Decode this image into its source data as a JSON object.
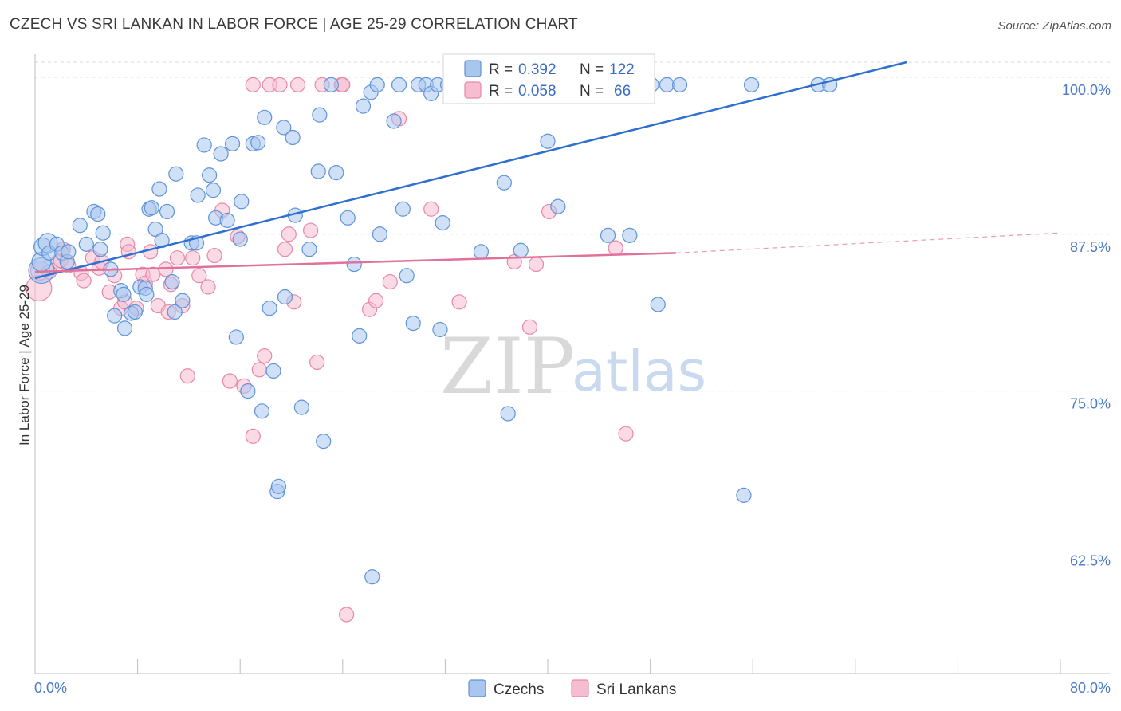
{
  "title": "CZECH VS SRI LANKAN IN LABOR FORCE | AGE 25-29 CORRELATION CHART",
  "source": "Source: ZipAtlas.com",
  "watermark": {
    "zip": "ZIP",
    "atlas": "atlas"
  },
  "colors": {
    "czech_fill": "#a9c6ee",
    "czech_stroke": "#5e93d8",
    "czech_line": "#2f6fd0",
    "lankan_fill": "#f6bcd0",
    "lankan_stroke": "#e887a7",
    "lankan_line": "#e0719a",
    "axis_text": "#4a7ac9",
    "grid": "#d8d8d8"
  },
  "legend": {
    "rows": [
      {
        "r_label": "R =",
        "r_value": "0.392",
        "n_label": "N =",
        "n_value": "122"
      },
      {
        "r_label": "R =",
        "r_value": "0.058",
        "n_label": "N =",
        "n_value": "66"
      }
    ]
  },
  "bottom_legend": [
    "Czechs",
    "Sri Lankans"
  ],
  "chart_data": {
    "type": "scatter",
    "ylabel": "In Labor Force | Age 25-29",
    "x_tick_labels": [
      "0.0%",
      "80.0%"
    ],
    "y_tick_labels": [
      "100.0%",
      "87.5%",
      "75.0%",
      "62.5%"
    ],
    "y_ticks": [
      100.0,
      87.5,
      75.0,
      62.5
    ],
    "xlim": [
      0,
      80
    ],
    "ylim": [
      52.5,
      101.2
    ],
    "legend_position": "top-center",
    "series": [
      {
        "name": "Czechs",
        "r": 0.392,
        "n": 122,
        "trend": {
          "x": [
            0,
            68
          ],
          "y": [
            84.0,
            101.2
          ],
          "dashed_to": null
        },
        "points": [
          [
            0.5,
            84.6,
            16
          ],
          [
            0.5,
            85.3,
            12
          ],
          [
            0.6,
            86.5,
            11
          ],
          [
            1.0,
            86.8,
            12
          ],
          [
            1.1,
            86.0,
            9
          ],
          [
            1.7,
            86.7,
            9
          ],
          [
            2.1,
            86.0,
            9
          ],
          [
            2.5,
            85.3,
            9
          ],
          [
            2.6,
            86.1,
            9
          ],
          [
            3.5,
            88.2,
            9
          ],
          [
            4.0,
            86.7,
            9
          ],
          [
            4.6,
            89.3,
            9
          ],
          [
            4.9,
            89.1,
            9
          ],
          [
            5.1,
            86.3,
            9
          ],
          [
            5.3,
            87.6,
            9
          ],
          [
            5.9,
            84.7,
            9
          ],
          [
            6.2,
            81.0,
            9
          ],
          [
            6.7,
            83.0,
            9
          ],
          [
            6.9,
            82.7,
            9
          ],
          [
            7.0,
            80.0,
            9
          ],
          [
            7.5,
            81.2,
            9
          ],
          [
            7.8,
            81.3,
            9
          ],
          [
            8.2,
            83.3,
            9
          ],
          [
            8.6,
            83.2,
            9
          ],
          [
            8.7,
            82.7,
            9
          ],
          [
            8.9,
            89.5,
            9
          ],
          [
            9.1,
            89.6,
            9
          ],
          [
            9.4,
            87.9,
            9
          ],
          [
            9.7,
            91.1,
            9
          ],
          [
            9.9,
            87.0,
            9
          ],
          [
            10.3,
            89.3,
            9
          ],
          [
            10.7,
            83.7,
            9
          ],
          [
            10.9,
            81.3,
            9
          ],
          [
            11.0,
            92.3,
            9
          ],
          [
            11.5,
            82.2,
            9
          ],
          [
            12.2,
            86.8,
            9
          ],
          [
            12.6,
            86.8,
            9
          ],
          [
            12.7,
            90.6,
            9
          ],
          [
            13.2,
            94.6,
            9
          ],
          [
            13.6,
            92.2,
            9
          ],
          [
            13.9,
            91.0,
            9
          ],
          [
            14.1,
            88.8,
            9
          ],
          [
            14.5,
            93.9,
            9
          ],
          [
            15.0,
            88.6,
            9
          ],
          [
            15.4,
            94.7,
            9
          ],
          [
            15.7,
            79.3,
            9
          ],
          [
            16.0,
            87.1,
            9
          ],
          [
            16.1,
            90.1,
            9
          ],
          [
            16.6,
            75.0,
            9
          ],
          [
            17.0,
            94.7,
            9
          ],
          [
            17.4,
            94.8,
            9
          ],
          [
            17.7,
            73.4,
            9
          ],
          [
            17.9,
            96.8,
            9
          ],
          [
            18.3,
            81.6,
            9
          ],
          [
            18.6,
            76.6,
            9
          ],
          [
            18.9,
            67.0,
            9
          ],
          [
            19.0,
            67.4,
            9
          ],
          [
            19.4,
            96.0,
            9
          ],
          [
            19.5,
            82.5,
            9
          ],
          [
            20.1,
            95.2,
            9
          ],
          [
            20.3,
            89.0,
            9
          ],
          [
            20.8,
            73.7,
            9
          ],
          [
            21.4,
            86.3,
            9
          ],
          [
            22.1,
            92.5,
            9
          ],
          [
            22.2,
            97.0,
            9
          ],
          [
            22.5,
            71.0,
            9
          ],
          [
            23.1,
            99.4,
            9
          ],
          [
            23.5,
            92.4,
            9
          ],
          [
            24.4,
            88.8,
            9
          ],
          [
            24.9,
            85.1,
            9
          ],
          [
            25.3,
            79.4,
            9
          ],
          [
            25.6,
            97.7,
            9
          ],
          [
            26.3,
            60.2,
            9
          ],
          [
            26.2,
            98.8,
            9
          ],
          [
            26.7,
            99.4,
            9
          ],
          [
            26.9,
            87.5,
            9
          ],
          [
            28.0,
            96.5,
            9
          ],
          [
            28.4,
            99.4,
            9
          ],
          [
            28.7,
            89.5,
            9
          ],
          [
            29.0,
            84.2,
            9
          ],
          [
            29.5,
            80.4,
            9
          ],
          [
            29.9,
            99.4,
            9
          ],
          [
            30.5,
            99.4,
            9
          ],
          [
            30.9,
            98.7,
            9
          ],
          [
            31.4,
            99.4,
            9
          ],
          [
            31.6,
            79.9,
            9
          ],
          [
            31.8,
            88.4,
            9
          ],
          [
            32.2,
            99.4,
            9
          ],
          [
            32.7,
            99.4,
            9
          ],
          [
            33.4,
            99.4,
            9
          ],
          [
            33.9,
            99.4,
            9
          ],
          [
            34.8,
            86.1,
            9
          ],
          [
            35.4,
            99.4,
            9
          ],
          [
            36.2,
            99.4,
            9
          ],
          [
            36.6,
            91.6,
            9
          ],
          [
            36.9,
            73.2,
            9
          ],
          [
            37.2,
            99.4,
            9
          ],
          [
            37.9,
            86.2,
            9
          ],
          [
            38.3,
            99.4,
            9
          ],
          [
            39.2,
            99.4,
            9
          ],
          [
            40.0,
            94.9,
            9
          ],
          [
            40.6,
            99.4,
            9
          ],
          [
            40.8,
            89.7,
            9
          ],
          [
            41.6,
            99.4,
            9
          ],
          [
            42.3,
            99.4,
            9
          ],
          [
            43.0,
            99.4,
            9
          ],
          [
            43.8,
            99.4,
            9
          ],
          [
            44.7,
            87.4,
            9
          ],
          [
            45.4,
            99.4,
            9
          ],
          [
            46.0,
            99.4,
            9
          ],
          [
            46.4,
            87.4,
            9
          ],
          [
            47.0,
            99.4,
            9
          ],
          [
            48.1,
            99.4,
            9
          ],
          [
            48.6,
            81.9,
            9
          ],
          [
            49.3,
            99.4,
            9
          ],
          [
            50.3,
            99.4,
            9
          ],
          [
            55.9,
            99.4,
            9
          ],
          [
            55.3,
            66.7,
            9
          ],
          [
            61.1,
            99.4,
            9
          ],
          [
            62.0,
            99.4,
            9
          ],
          [
            44.0,
            99.4,
            9
          ]
        ]
      },
      {
        "name": "Sri Lankans",
        "r": 0.058,
        "n": 66,
        "trend": {
          "x": [
            0,
            50
          ],
          "y": [
            84.5,
            86.0
          ],
          "dashed_to": [
            80,
            87.6
          ]
        },
        "points": [
          [
            0.3,
            83.2,
            16
          ],
          [
            0.4,
            84.6,
            12
          ],
          [
            1.1,
            84.5,
            9
          ],
          [
            1.8,
            85.3,
            9
          ],
          [
            2.0,
            85.4,
            9
          ],
          [
            2.2,
            86.3,
            9
          ],
          [
            2.6,
            85.0,
            9
          ],
          [
            3.6,
            84.4,
            9
          ],
          [
            3.8,
            83.8,
            9
          ],
          [
            4.5,
            85.6,
            9
          ],
          [
            5.0,
            84.8,
            9
          ],
          [
            5.2,
            85.3,
            9
          ],
          [
            5.8,
            82.9,
            9
          ],
          [
            6.2,
            84.2,
            9
          ],
          [
            6.7,
            81.6,
            9
          ],
          [
            7.0,
            82.1,
            9
          ],
          [
            7.2,
            86.7,
            9
          ],
          [
            7.3,
            86.1,
            9
          ],
          [
            7.9,
            81.6,
            9
          ],
          [
            8.4,
            84.3,
            9
          ],
          [
            8.6,
            83.6,
            9
          ],
          [
            9.0,
            86.1,
            9
          ],
          [
            9.2,
            84.3,
            9
          ],
          [
            9.6,
            81.8,
            9
          ],
          [
            10.2,
            84.7,
            9
          ],
          [
            10.4,
            81.3,
            9
          ],
          [
            10.6,
            83.5,
            9
          ],
          [
            11.1,
            85.6,
            9
          ],
          [
            11.5,
            81.8,
            9
          ],
          [
            11.9,
            76.2,
            9
          ],
          [
            12.3,
            85.6,
            9
          ],
          [
            12.8,
            84.2,
            9
          ],
          [
            13.5,
            83.3,
            9
          ],
          [
            14.0,
            85.8,
            9
          ],
          [
            14.6,
            89.4,
            9
          ],
          [
            15.2,
            75.8,
            9
          ],
          [
            15.8,
            87.3,
            9
          ],
          [
            16.3,
            75.4,
            9
          ],
          [
            17.0,
            71.4,
            9
          ],
          [
            17.5,
            76.7,
            9
          ],
          [
            17.9,
            77.8,
            9
          ],
          [
            18.3,
            99.4,
            9
          ],
          [
            19.1,
            99.4,
            9
          ],
          [
            19.5,
            86.3,
            9
          ],
          [
            19.8,
            87.5,
            9
          ],
          [
            20.2,
            82.1,
            9
          ],
          [
            20.5,
            99.4,
            9
          ],
          [
            21.5,
            87.8,
            9
          ],
          [
            22.0,
            77.3,
            9
          ],
          [
            22.4,
            99.4,
            9
          ],
          [
            23.9,
            99.4,
            9
          ],
          [
            24.3,
            57.2,
            9
          ],
          [
            26.1,
            81.5,
            9
          ],
          [
            26.6,
            82.2,
            9
          ],
          [
            27.7,
            83.7,
            9
          ],
          [
            28.4,
            96.7,
            9
          ],
          [
            30.9,
            89.5,
            9
          ],
          [
            33.1,
            82.1,
            9
          ],
          [
            37.4,
            85.3,
            9
          ],
          [
            38.6,
            80.1,
            9
          ],
          [
            39.1,
            85.1,
            9
          ],
          [
            40.1,
            89.3,
            9
          ],
          [
            45.3,
            86.4,
            9
          ],
          [
            46.1,
            71.6,
            9
          ],
          [
            17.0,
            99.4,
            9
          ],
          [
            24.0,
            99.4,
            9
          ]
        ]
      }
    ]
  }
}
